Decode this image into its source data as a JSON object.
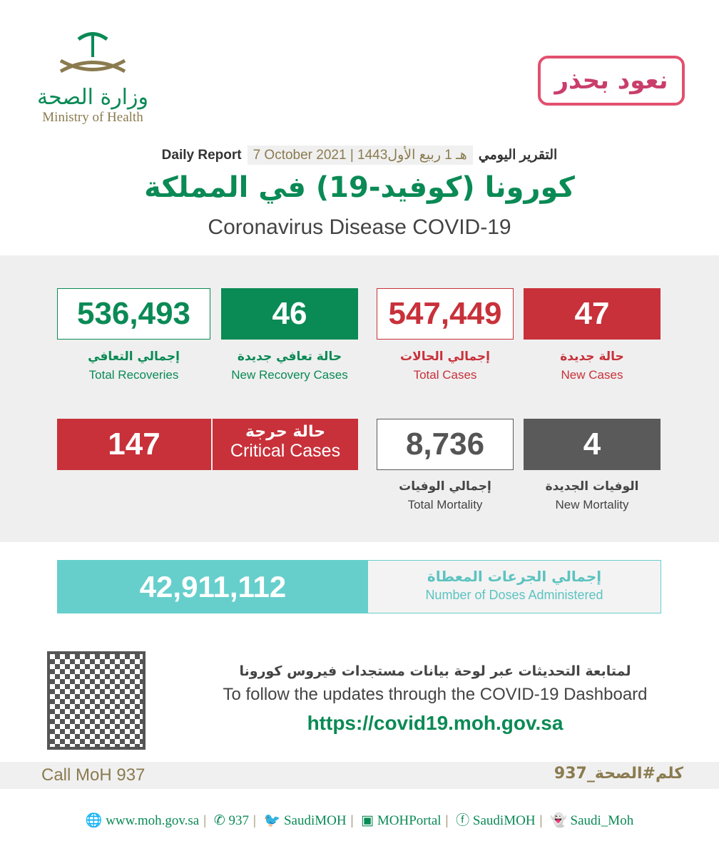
{
  "header": {
    "logo_ar": "وزارة الصحة",
    "logo_en": "Ministry of Health",
    "campaign": "نعود بحذر"
  },
  "report": {
    "label_ar": "التقرير اليومي",
    "date": "7 October 2021 | 1443هـ 1 ربيع الأول",
    "label_en": "Daily Report"
  },
  "title": {
    "ar": "كورونا (كوفيد-19) في المملكة",
    "en": "Coronavirus Disease COVID-19"
  },
  "stats": {
    "new_cases": {
      "value": "47",
      "ar": "حالة جديدة",
      "en": "New Cases"
    },
    "total_cases": {
      "value": "547,449",
      "ar": "إجمالي الحالات",
      "en": "Total Cases"
    },
    "new_recovery": {
      "value": "46",
      "ar": "حالة تعافي جديدة",
      "en": "New Recovery Cases"
    },
    "total_recoveries": {
      "value": "536,493",
      "ar": "إجمالي التعافي",
      "en": "Total Recoveries"
    },
    "new_mortality": {
      "value": "4",
      "ar": "الوفيات الجديدة",
      "en": "New Mortality"
    },
    "total_mortality": {
      "value": "8,736",
      "ar": "إجمالي الوفيات",
      "en": "Total Mortality"
    },
    "critical": {
      "value": "147",
      "ar": "حالة حرجة",
      "en": "Critical Cases"
    }
  },
  "doses": {
    "value": "42,911,112",
    "ar": "إجمالي الجرعات المعطاة",
    "en": "Number of Doses Administered"
  },
  "follow": {
    "ar": "لمتابعة التحديثات عبر لوحة بيانات مستجدات فيروس كورونا",
    "en": "To follow the updates through the COVID-19 Dashboard",
    "url": "https://covid19.moh.gov.sa"
  },
  "call": {
    "en": "Call MoH 937",
    "ar": "كلم#الصحة_937"
  },
  "footer": [
    "www.moh.gov.sa",
    "937",
    "SaudiMOH",
    "MOHPortal",
    "SaudiMOH",
    "Saudi_Moh"
  ],
  "colors": {
    "green": "#0a8a55",
    "red": "#c8313a",
    "gray": "#5a5a5a",
    "teal": "#66cfcc",
    "gold": "#8a7b4f"
  }
}
